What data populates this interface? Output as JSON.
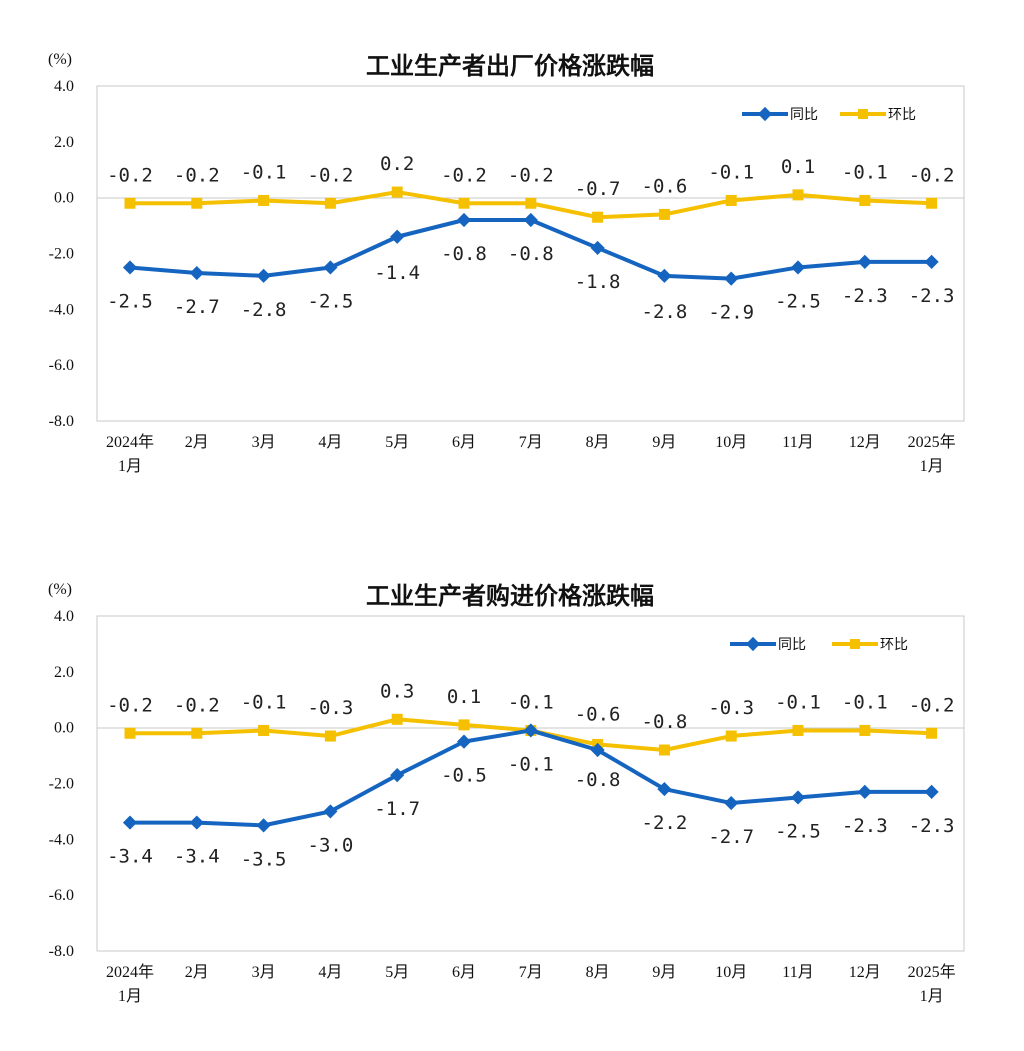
{
  "charts": [
    {
      "title": "工业生产者出厂价格涨跌幅",
      "unit": "(%)",
      "legend": {
        "yoy": "同比",
        "mom": "环比"
      }
    },
    {
      "title": "工业生产者购进价格涨跌幅",
      "unit": "(%)",
      "legend": {
        "yoy": "同比",
        "mom": "环比"
      }
    }
  ],
  "chart_data": [
    {
      "type": "line",
      "title": "工业生产者出厂价格涨跌幅",
      "ylabel": "(%)",
      "ylim": [
        -8.0,
        4.0
      ],
      "yticks": [
        "4.0",
        "2.0",
        "0.0",
        "-2.0",
        "-4.0",
        "-6.0",
        "-8.0"
      ],
      "categories": [
        [
          "2024年",
          "1月"
        ],
        [
          "2月"
        ],
        [
          "3月"
        ],
        [
          "4月"
        ],
        [
          "5月"
        ],
        [
          "6月"
        ],
        [
          "7月"
        ],
        [
          "8月"
        ],
        [
          "9月"
        ],
        [
          "10月"
        ],
        [
          "11月"
        ],
        [
          "12月"
        ],
        [
          "2025年",
          "1月"
        ]
      ],
      "series": [
        {
          "name": "同比",
          "color": "#1565C0",
          "marker": "diamond",
          "values": [
            -2.5,
            -2.7,
            -2.8,
            -2.5,
            -1.4,
            -0.8,
            -0.8,
            -1.8,
            -2.8,
            -2.9,
            -2.5,
            -2.3,
            -2.3
          ],
          "labels": [
            "-2.5",
            "-2.7",
            "-2.8",
            "-2.5",
            "-1.4",
            "-0.8",
            "-0.8",
            "-1.8",
            "-2.8",
            "-2.9",
            "-2.5",
            "-2.3",
            "-2.3"
          ]
        },
        {
          "name": "环比",
          "color": "#F5C000",
          "marker": "square",
          "values": [
            -0.2,
            -0.2,
            -0.1,
            -0.2,
            0.2,
            -0.2,
            -0.2,
            -0.7,
            -0.6,
            -0.1,
            0.1,
            -0.1,
            -0.2
          ],
          "labels": [
            "-0.2",
            "-0.2",
            "-0.1",
            "-0.2",
            "0.2",
            "-0.2",
            "-0.2",
            "-0.7",
            "-0.6",
            "-0.1",
            "0.1",
            "-0.1",
            "-0.2"
          ]
        }
      ],
      "legend_position": "top-right",
      "grid": false
    },
    {
      "type": "line",
      "title": "工业生产者购进价格涨跌幅",
      "ylabel": "(%)",
      "ylim": [
        -8.0,
        4.0
      ],
      "yticks": [
        "4.0",
        "2.0",
        "0.0",
        "-2.0",
        "-4.0",
        "-6.0",
        "-8.0"
      ],
      "categories": [
        [
          "2024年",
          "1月"
        ],
        [
          "2月"
        ],
        [
          "3月"
        ],
        [
          "4月"
        ],
        [
          "5月"
        ],
        [
          "6月"
        ],
        [
          "7月"
        ],
        [
          "8月"
        ],
        [
          "9月"
        ],
        [
          "10月"
        ],
        [
          "11月"
        ],
        [
          "12月"
        ],
        [
          "2025年",
          "1月"
        ]
      ],
      "series": [
        {
          "name": "同比",
          "color": "#1565C0",
          "marker": "diamond",
          "values": [
            -3.4,
            -3.4,
            -3.5,
            -3.0,
            -1.7,
            -0.5,
            -0.1,
            -0.8,
            -2.2,
            -2.7,
            -2.5,
            -2.3,
            -2.3
          ],
          "labels": [
            "-3.4",
            "-3.4",
            "-3.5",
            "-3.0",
            "-1.7",
            "-0.5",
            "-0.1",
            "-0.8",
            "-2.2",
            "-2.7",
            "-2.5",
            "-2.3",
            "-2.3"
          ]
        },
        {
          "name": "环比",
          "color": "#F5C000",
          "marker": "square",
          "values": [
            -0.2,
            -0.2,
            -0.1,
            -0.3,
            0.3,
            0.1,
            -0.1,
            -0.6,
            -0.8,
            -0.3,
            -0.1,
            -0.1,
            -0.2
          ],
          "labels": [
            "-0.2",
            "-0.2",
            "-0.1",
            "-0.3",
            "0.3",
            "0.1",
            "-0.1",
            "-0.6",
            "-0.8",
            "-0.3",
            "-0.1",
            "-0.1",
            "-0.2"
          ]
        }
      ],
      "legend_position": "top-right",
      "grid": false
    }
  ]
}
